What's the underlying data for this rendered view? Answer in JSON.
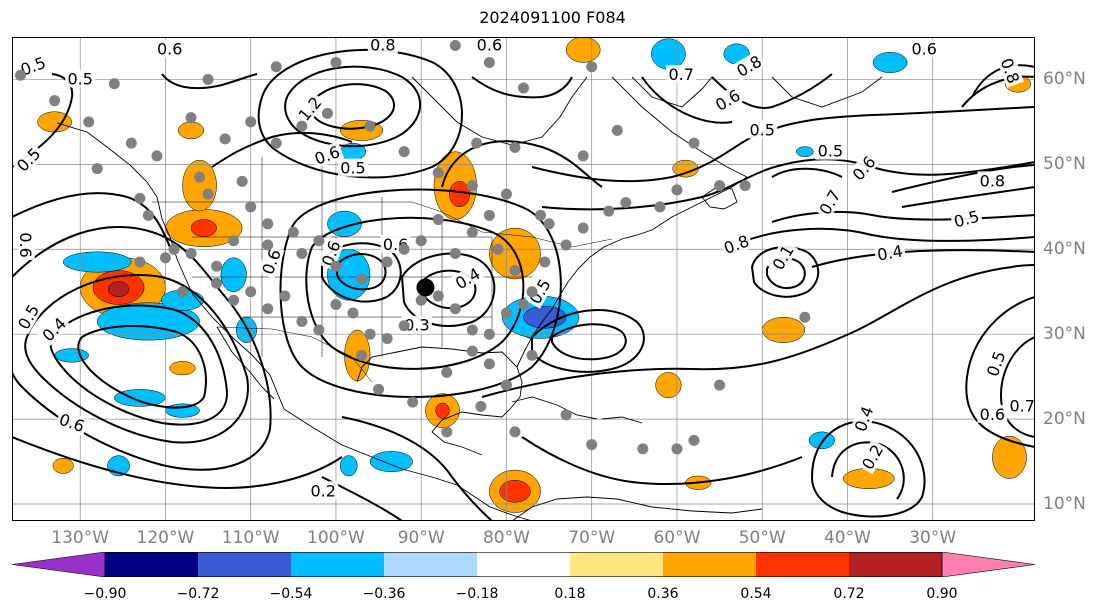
{
  "title": "2024091100 F084",
  "map": {
    "projection": "equirectangular",
    "lon_range": [
      -138,
      -18
    ],
    "lat_range": [
      8,
      65
    ],
    "gridlines": true,
    "lon_ticks": [
      {
        "lon": -130,
        "label": "130°W"
      },
      {
        "lon": -120,
        "label": "120°W"
      },
      {
        "lon": -110,
        "label": "110°W"
      },
      {
        "lon": -100,
        "label": "100°W"
      },
      {
        "lon": -90,
        "label": "90°W"
      },
      {
        "lon": -80,
        "label": "80°W"
      },
      {
        "lon": -70,
        "label": "70°W"
      },
      {
        "lon": -60,
        "label": "60°W"
      },
      {
        "lon": -50,
        "label": "50°W"
      },
      {
        "lon": -40,
        "label": "40°W"
      },
      {
        "lon": -30,
        "label": "30°W"
      }
    ],
    "lat_ticks": [
      {
        "lat": 60,
        "label": "60°N"
      },
      {
        "lat": 50,
        "label": "50°N"
      },
      {
        "lat": 40,
        "label": "40°N"
      },
      {
        "lat": 30,
        "label": "30°N"
      },
      {
        "lat": 20,
        "label": "20°N"
      },
      {
        "lat": 10,
        "label": "10°N"
      }
    ],
    "contour_labels": [
      {
        "text": "0.6",
        "lon": -131,
        "lat": 19.5,
        "rot": 20
      },
      {
        "text": "0.5",
        "lon": -136,
        "lat": 32,
        "rot": -60
      },
      {
        "text": "0.4",
        "lon": -133,
        "lat": 30.5,
        "rot": -45
      },
      {
        "text": "0.6",
        "lon": -136.5,
        "lat": 40.5,
        "rot": 90
      },
      {
        "text": "0.5",
        "lon": -136,
        "lat": 50.5,
        "rot": -45
      },
      {
        "text": "0.5",
        "lon": -130,
        "lat": 60,
        "rot": 0
      },
      {
        "text": "0.5",
        "lon": -135.5,
        "lat": 61.5,
        "rot": -20
      },
      {
        "text": "0.6",
        "lon": -119.5,
        "lat": 63.5,
        "rot": 0
      },
      {
        "text": "1.2",
        "lon": -103,
        "lat": 56.5,
        "rot": -50
      },
      {
        "text": "0.6",
        "lon": -101,
        "lat": 51,
        "rot": -20
      },
      {
        "text": "0.5",
        "lon": -98,
        "lat": 49.5,
        "rot": 0
      },
      {
        "text": "0.8",
        "lon": -94.5,
        "lat": 64,
        "rot": 0
      },
      {
        "text": "0.6",
        "lon": -82,
        "lat": 64,
        "rot": 0
      },
      {
        "text": "0.7",
        "lon": -59.5,
        "lat": 60.5,
        "rot": 0
      },
      {
        "text": "0.6",
        "lon": -54,
        "lat": 57.5,
        "rot": -30
      },
      {
        "text": "0.8",
        "lon": -51.5,
        "lat": 61.5,
        "rot": -30
      },
      {
        "text": "0.5",
        "lon": -50,
        "lat": 54,
        "rot": 0
      },
      {
        "text": "0.6",
        "lon": -31,
        "lat": 63.5,
        "rot": 0
      },
      {
        "text": "0.8",
        "lon": -21,
        "lat": 61,
        "rot": 70
      },
      {
        "text": "0.5",
        "lon": -42,
        "lat": 51.5,
        "rot": 0
      },
      {
        "text": "0.6",
        "lon": -38,
        "lat": 49.5,
        "rot": -50
      },
      {
        "text": "0.8",
        "lon": -23,
        "lat": 48,
        "rot": 0
      },
      {
        "text": "0.7",
        "lon": -42,
        "lat": 45.5,
        "rot": -60
      },
      {
        "text": "0.5",
        "lon": -26,
        "lat": 43.5,
        "rot": -15
      },
      {
        "text": "0.4",
        "lon": -35,
        "lat": 39.5,
        "rot": -10
      },
      {
        "text": "0.8",
        "lon": -53,
        "lat": 40.5,
        "rot": -20
      },
      {
        "text": "0.1",
        "lon": -47.5,
        "lat": 39,
        "rot": -60
      },
      {
        "text": "0.5",
        "lon": -22.5,
        "lat": 26.5,
        "rot": -70
      },
      {
        "text": "0.7",
        "lon": -19.5,
        "lat": 21.5,
        "rot": 0
      },
      {
        "text": "0.6",
        "lon": -23,
        "lat": 20.5,
        "rot": 0
      },
      {
        "text": "0.4",
        "lon": -38,
        "lat": 20,
        "rot": -70
      },
      {
        "text": "0.2",
        "lon": -37,
        "lat": 15.5,
        "rot": -60
      },
      {
        "text": "0.6",
        "lon": -107.5,
        "lat": 38.5,
        "rot": -70
      },
      {
        "text": "0.6",
        "lon": -100.5,
        "lat": 39.5,
        "rot": -70
      },
      {
        "text": "0.6",
        "lon": -93,
        "lat": 40.5,
        "rot": 0
      },
      {
        "text": "0.4",
        "lon": -84.5,
        "lat": 36.5,
        "rot": -30
      },
      {
        "text": "0.3",
        "lon": -90.5,
        "lat": 31,
        "rot": 0
      },
      {
        "text": "0.5",
        "lon": -76,
        "lat": 35,
        "rot": -60
      },
      {
        "text": "0.2",
        "lon": -101.5,
        "lat": 11.5,
        "rot": 0
      }
    ],
    "fill_colors": {
      "dark_red": "#b22222",
      "red": "#ff3300",
      "orange": "#ffa500",
      "light_blue": "#00bfff",
      "medium_blue": "#3a5bd6"
    },
    "fill_patches": [
      {
        "lon": -125,
        "lat": 35.5,
        "rx": 5,
        "ry": 3.5,
        "level": "orange"
      },
      {
        "lon": -125.5,
        "lat": 35.5,
        "rx": 3,
        "ry": 2,
        "level": "red"
      },
      {
        "lon": -125.5,
        "lat": 35.3,
        "rx": 1.2,
        "ry": 0.9,
        "level": "dark_red"
      },
      {
        "lon": -115.5,
        "lat": 42.5,
        "rx": 4.5,
        "ry": 2.2,
        "level": "orange"
      },
      {
        "lon": -115.5,
        "lat": 42.5,
        "rx": 1.5,
        "ry": 1,
        "level": "red"
      },
      {
        "lon": -116,
        "lat": 47.5,
        "rx": 2,
        "ry": 3,
        "level": "orange"
      },
      {
        "lon": -117,
        "lat": 54,
        "rx": 1.5,
        "ry": 1,
        "level": "orange"
      },
      {
        "lon": -133,
        "lat": 55,
        "rx": 2,
        "ry": 1.2,
        "level": "orange"
      },
      {
        "lon": -97,
        "lat": 54,
        "rx": 2.5,
        "ry": 1.2,
        "level": "orange"
      },
      {
        "lon": -86,
        "lat": 47.5,
        "rx": 2.5,
        "ry": 4,
        "level": "orange"
      },
      {
        "lon": -85.5,
        "lat": 46.5,
        "rx": 1.2,
        "ry": 1.5,
        "level": "red"
      },
      {
        "lon": -79,
        "lat": 39.5,
        "rx": 3,
        "ry": 3,
        "level": "orange"
      },
      {
        "lon": -71,
        "lat": 63.5,
        "rx": 2,
        "ry": 1.5,
        "level": "orange"
      },
      {
        "lon": -77,
        "lat": 31,
        "rx": 1.5,
        "ry": 1.5,
        "level": "orange"
      },
      {
        "lon": -97.5,
        "lat": 27.5,
        "rx": 1.5,
        "ry": 3,
        "level": "orange"
      },
      {
        "lon": -87.5,
        "lat": 21,
        "rx": 2,
        "ry": 2,
        "level": "orange"
      },
      {
        "lon": -87.5,
        "lat": 21,
        "rx": 0.8,
        "ry": 0.9,
        "level": "red"
      },
      {
        "lon": -79,
        "lat": 11.5,
        "rx": 3,
        "ry": 2.5,
        "level": "orange"
      },
      {
        "lon": -79,
        "lat": 11.5,
        "rx": 1.8,
        "ry": 1.3,
        "level": "red"
      },
      {
        "lon": -59,
        "lat": 49.5,
        "rx": 1.5,
        "ry": 1,
        "level": "orange"
      },
      {
        "lon": -47.5,
        "lat": 30.5,
        "rx": 2.5,
        "ry": 1.5,
        "level": "orange"
      },
      {
        "lon": -61,
        "lat": 24,
        "rx": 1.5,
        "ry": 1.5,
        "level": "orange"
      },
      {
        "lon": -21,
        "lat": 15.5,
        "rx": 2,
        "ry": 2.5,
        "level": "orange"
      },
      {
        "lon": -37.5,
        "lat": 13,
        "rx": 3,
        "ry": 1.2,
        "level": "orange"
      },
      {
        "lon": -20,
        "lat": 59.5,
        "rx": 1.5,
        "ry": 1,
        "level": "orange"
      },
      {
        "lon": -118,
        "lat": 26,
        "rx": 1.5,
        "ry": 0.8,
        "level": "orange"
      },
      {
        "lon": -132,
        "lat": 14.5,
        "rx": 1.2,
        "ry": 0.9,
        "level": "orange"
      },
      {
        "lon": -57.5,
        "lat": 12.5,
        "rx": 1.5,
        "ry": 0.8,
        "level": "orange"
      },
      {
        "lon": -128,
        "lat": 38.5,
        "rx": 4,
        "ry": 1.2,
        "level": "light_blue"
      },
      {
        "lon": -122,
        "lat": 31.5,
        "rx": 6,
        "ry": 2.2,
        "level": "light_blue"
      },
      {
        "lon": -118,
        "lat": 34,
        "rx": 2.5,
        "ry": 1.2,
        "level": "light_blue"
      },
      {
        "lon": -112,
        "lat": 37,
        "rx": 1.5,
        "ry": 2,
        "level": "light_blue"
      },
      {
        "lon": -110.5,
        "lat": 30.5,
        "rx": 1.2,
        "ry": 1.5,
        "level": "light_blue"
      },
      {
        "lon": -123,
        "lat": 22.5,
        "rx": 3,
        "ry": 1,
        "level": "light_blue"
      },
      {
        "lon": -118,
        "lat": 21,
        "rx": 2,
        "ry": 0.8,
        "level": "light_blue"
      },
      {
        "lon": -131,
        "lat": 27.5,
        "rx": 2,
        "ry": 0.8,
        "level": "light_blue"
      },
      {
        "lon": -99,
        "lat": 43,
        "rx": 2,
        "ry": 1.5,
        "level": "light_blue"
      },
      {
        "lon": -98.5,
        "lat": 37,
        "rx": 2.5,
        "ry": 3,
        "level": "light_blue"
      },
      {
        "lon": -76,
        "lat": 32,
        "rx": 4.5,
        "ry": 2.5,
        "level": "light_blue"
      },
      {
        "lon": -75.5,
        "lat": 32,
        "rx": 2.5,
        "ry": 1.3,
        "level": "medium_blue"
      },
      {
        "lon": -93.5,
        "lat": 15,
        "rx": 2.5,
        "ry": 1.2,
        "level": "light_blue"
      },
      {
        "lon": -98.5,
        "lat": 14.5,
        "rx": 1,
        "ry": 1.2,
        "level": "light_blue"
      },
      {
        "lon": -125.5,
        "lat": 14.5,
        "rx": 1.3,
        "ry": 1.2,
        "level": "light_blue"
      },
      {
        "lon": -61,
        "lat": 63,
        "rx": 2,
        "ry": 1.8,
        "level": "light_blue"
      },
      {
        "lon": -43,
        "lat": 17.5,
        "rx": 1.5,
        "ry": 1,
        "level": "light_blue"
      },
      {
        "lon": -98,
        "lat": 51.5,
        "rx": 1.5,
        "ry": 1,
        "level": "light_blue"
      },
      {
        "lon": -35,
        "lat": 62,
        "rx": 2,
        "ry": 1.2,
        "level": "light_blue"
      },
      {
        "lon": -53,
        "lat": 63,
        "rx": 1.5,
        "ry": 1.2,
        "level": "light_blue"
      },
      {
        "lon": -45,
        "lat": 51.5,
        "rx": 1,
        "ry": 0.6,
        "level": "light_blue"
      }
    ],
    "station_markers": [
      [
        -137,
        60.5
      ],
      [
        -133,
        57.5
      ],
      [
        -129,
        55
      ],
      [
        -124,
        52.5
      ],
      [
        -121,
        51
      ],
      [
        -117,
        55.5
      ],
      [
        -116,
        48.5
      ],
      [
        -113,
        53
      ],
      [
        -110,
        55
      ],
      [
        -107,
        52.5
      ],
      [
        -104,
        54.5
      ],
      [
        -101,
        56
      ],
      [
        -96,
        54.5
      ],
      [
        -92,
        51.5
      ],
      [
        -88,
        49
      ],
      [
        -84,
        47.5
      ],
      [
        -82,
        44
      ],
      [
        -79,
        52
      ],
      [
        -80,
        46.5
      ],
      [
        -76,
        44
      ],
      [
        -75,
        43
      ],
      [
        -73,
        40.5
      ],
      [
        -71,
        42.5
      ],
      [
        -68,
        44.5
      ],
      [
        -66,
        45.5
      ],
      [
        -62,
        45
      ],
      [
        -60,
        47
      ],
      [
        -55,
        47.5
      ],
      [
        -58,
        52.5
      ],
      [
        -52,
        47.5
      ],
      [
        -67,
        54
      ],
      [
        -71,
        51
      ],
      [
        -78,
        59
      ],
      [
        -70,
        61.5
      ],
      [
        -82,
        62
      ],
      [
        -86,
        64
      ],
      [
        -100,
        62
      ],
      [
        -107,
        61.5
      ],
      [
        -115,
        60
      ],
      [
        -126,
        59.5
      ],
      [
        -128,
        49.5
      ],
      [
        -123,
        46
      ],
      [
        -122,
        44
      ],
      [
        -119,
        40
      ],
      [
        -117,
        39.5
      ],
      [
        -114,
        38
      ],
      [
        -112,
        41
      ],
      [
        -110,
        45
      ],
      [
        -108,
        43
      ],
      [
        -105,
        42
      ],
      [
        -104,
        39.5
      ],
      [
        -102,
        41
      ],
      [
        -100,
        38
      ],
      [
        -97,
        36.5
      ],
      [
        -94,
        38.5
      ],
      [
        -92,
        40
      ],
      [
        -90,
        41
      ],
      [
        -88,
        43.5
      ],
      [
        -86,
        39.5
      ],
      [
        -84,
        42
      ],
      [
        -81,
        40
      ],
      [
        -79,
        37.5
      ],
      [
        -77,
        35
      ],
      [
        -78,
        33.5
      ],
      [
        -80,
        32.5
      ],
      [
        -82,
        30
      ],
      [
        -84,
        30.5
      ],
      [
        -86,
        33
      ],
      [
        -88,
        34.5
      ],
      [
        -90,
        34
      ],
      [
        -92,
        31
      ],
      [
        -94,
        29.5
      ],
      [
        -96,
        30
      ],
      [
        -98,
        32.5
      ],
      [
        -100,
        33.5
      ],
      [
        -102,
        30.5
      ],
      [
        -104,
        31.5
      ],
      [
        -106,
        34.5
      ],
      [
        -108,
        33
      ],
      [
        -110,
        35
      ],
      [
        -112,
        34
      ],
      [
        -114,
        36
      ],
      [
        -118,
        35
      ],
      [
        -120,
        39
      ],
      [
        -123,
        38.5
      ],
      [
        -97,
        27.5
      ],
      [
        -95,
        23.5
      ],
      [
        -91,
        22
      ],
      [
        -87,
        25.5
      ],
      [
        -84,
        28
      ],
      [
        -82,
        26.5
      ],
      [
        -80,
        24
      ],
      [
        -77,
        27.5
      ],
      [
        -73,
        20.5
      ],
      [
        -79,
        18.5
      ],
      [
        -70,
        17
      ],
      [
        -64,
        16.5
      ],
      [
        -60,
        16.5
      ],
      [
        -55,
        24
      ],
      [
        -45,
        32
      ],
      [
        -58,
        17.5
      ],
      [
        -87,
        18.5
      ],
      [
        -83,
        21.5
      ],
      [
        -108,
        40.5
      ],
      [
        -111,
        48
      ],
      [
        -115,
        46.5
      ],
      [
        -75.5,
        38.5
      ],
      [
        -83.5,
        52.5
      ]
    ],
    "highlight_marker": {
      "lon": -89.5,
      "lat": 35.5
    }
  },
  "colorbar": {
    "colors": [
      "#9932cc",
      "#000080",
      "#3a5bd6",
      "#00bfff",
      "#add8ff",
      "#ffffff",
      "#ffe680",
      "#ffa500",
      "#ff3300",
      "#b22222",
      "#ff80b0"
    ],
    "tick_labels": [
      "−0.90",
      "−0.72",
      "−0.54",
      "−0.36",
      "−0.18",
      "0.18",
      "0.36",
      "0.54",
      "0.72",
      "0.90"
    ]
  }
}
